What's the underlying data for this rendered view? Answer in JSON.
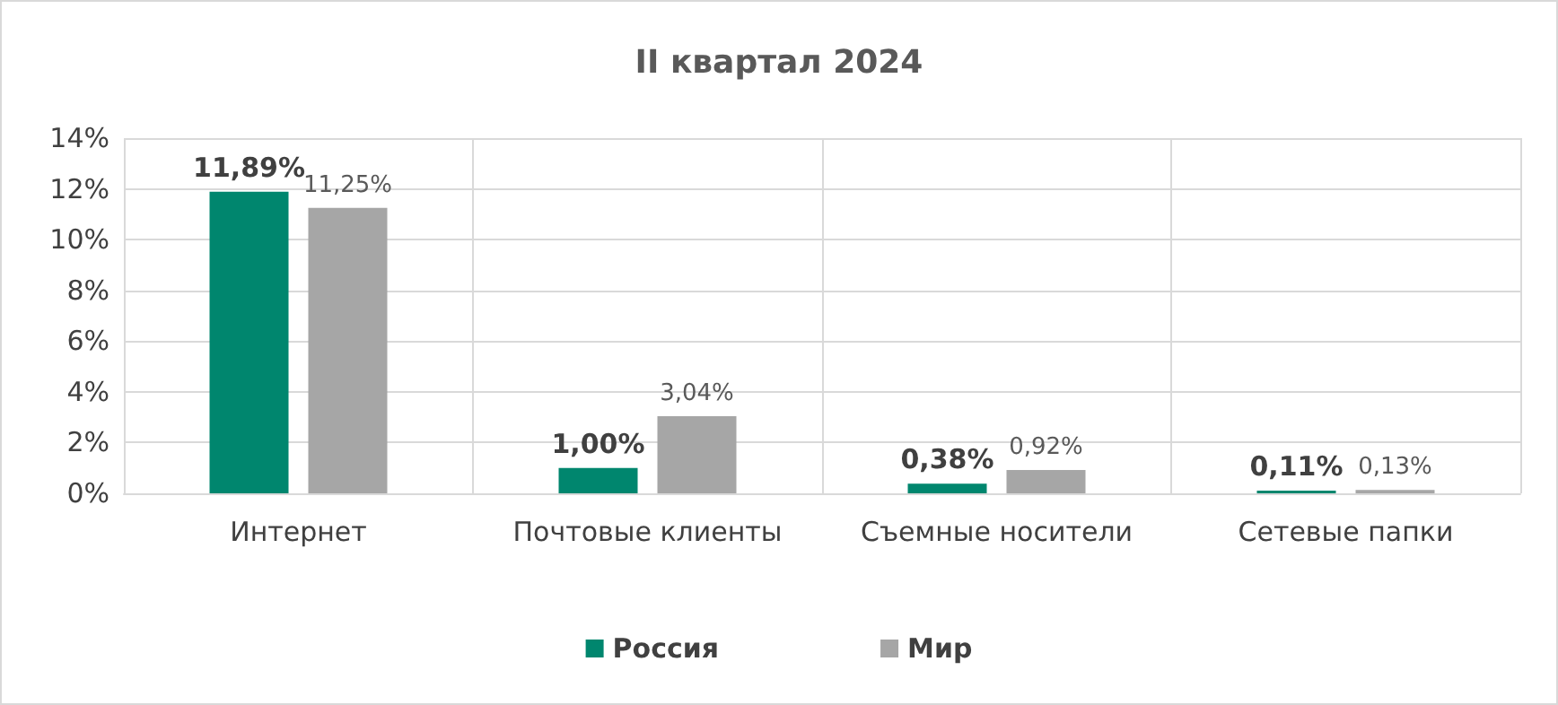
{
  "chart_data": {
    "type": "bar",
    "title": "II квартал 2024",
    "categories": [
      "Интернет",
      "Почтовые клиенты",
      "Съемные носители",
      "Сетевые папки"
    ],
    "series": [
      {
        "name": "Россия",
        "color": "#00866e",
        "values": [
          11.89,
          1.0,
          0.38,
          0.11
        ],
        "value_labels": [
          "11,89%",
          "1,00%",
          "0,38%",
          "0,11%"
        ]
      },
      {
        "name": "Мир",
        "color": "#a6a6a6",
        "values": [
          11.25,
          3.04,
          0.92,
          0.13
        ],
        "value_labels": [
          "11,25%",
          "3,04%",
          "0,92%",
          "0,13%"
        ]
      }
    ],
    "ylim": [
      0,
      14
    ],
    "yticks": [
      {
        "value": 0,
        "label": "0%"
      },
      {
        "value": 2,
        "label": "2%"
      },
      {
        "value": 4,
        "label": "4%"
      },
      {
        "value": 6,
        "label": "6%"
      },
      {
        "value": 8,
        "label": "8%"
      },
      {
        "value": 10,
        "label": "10%"
      },
      {
        "value": 12,
        "label": "12%"
      },
      {
        "value": 14,
        "label": "14%"
      }
    ],
    "grid": true,
    "legend": "bottom"
  }
}
